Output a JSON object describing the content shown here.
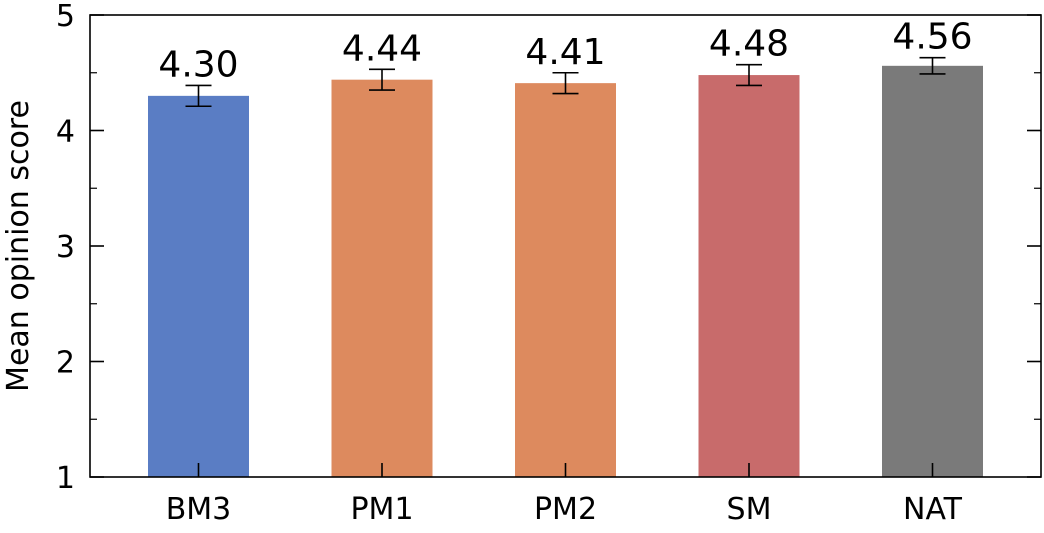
{
  "chart_data": {
    "type": "bar",
    "title": "",
    "xlabel": "",
    "ylabel": "Mean opinion score",
    "ylim": [
      1,
      5
    ],
    "yticks": [
      1,
      2,
      3,
      4,
      5
    ],
    "grid": false,
    "categories": [
      "BM3",
      "PM1",
      "PM2",
      "SM",
      "NAT"
    ],
    "values": [
      4.3,
      4.44,
      4.41,
      4.48,
      4.56
    ],
    "value_labels": [
      "4.30",
      "4.44",
      "4.41",
      "4.48",
      "4.56"
    ],
    "error": [
      0.09,
      0.09,
      0.09,
      0.09,
      0.07
    ],
    "colors": [
      "#5a7dc4",
      "#dd8a5e",
      "#dd8a5e",
      "#c86b6b",
      "#7a7a7a"
    ]
  }
}
